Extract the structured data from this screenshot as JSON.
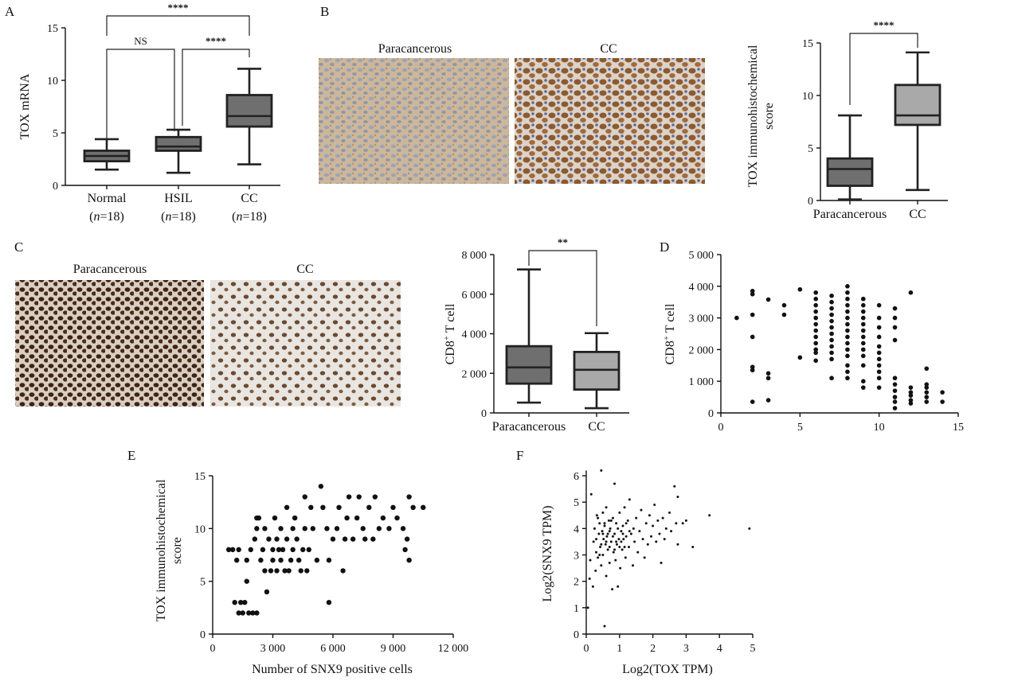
{
  "panel_letters": {
    "a": "A",
    "b": "B",
    "c": "C",
    "d": "D",
    "e": "E",
    "f": "F"
  },
  "micrograph_labels": {
    "b_left": "Paracancerous",
    "b_right": "CC",
    "c_left": "Paracancerous",
    "c_right": "CC"
  },
  "colors": {
    "dark_box": "#6f6f6f",
    "light_box": "#a9a9a9",
    "ink": "#111111"
  },
  "chart_data": [
    {
      "id": "A",
      "type": "box",
      "ylabel": "TOX mRNA",
      "ylim": [
        0,
        15
      ],
      "yticks": [
        "0",
        "5",
        "10",
        "15"
      ],
      "categories": [
        {
          "line1": "Normal",
          "n_label": "n",
          "n_value": "=18"
        },
        {
          "line1": "HSIL",
          "n_label": "n",
          "n_value": "=18"
        },
        {
          "line1": "CC",
          "n_label": "n",
          "n_value": "=18"
        }
      ],
      "boxes": [
        {
          "min": 1.5,
          "q1": 2.3,
          "median": 2.8,
          "q3": 3.3,
          "max": 4.4,
          "fill": "#6f6f6f"
        },
        {
          "min": 1.2,
          "q1": 3.3,
          "median": 3.7,
          "q3": 4.6,
          "max": 5.3,
          "fill": "#6f6f6f"
        },
        {
          "min": 2.0,
          "q1": 5.6,
          "median": 6.6,
          "q3": 8.6,
          "max": 11.1,
          "fill": "#6f6f6f"
        }
      ],
      "comparisons": [
        {
          "from": 0,
          "to": 1,
          "label": "NS"
        },
        {
          "from": 1,
          "to": 2,
          "label": "****"
        },
        {
          "from": 0,
          "to": 2,
          "label": "****"
        }
      ]
    },
    {
      "id": "B",
      "type": "box",
      "ylabel_line1": "TOX immunohistochemical",
      "ylabel_line2": "score",
      "ylim": [
        0,
        15
      ],
      "yticks": [
        "0",
        "5",
        "10",
        "15"
      ],
      "categories": [
        "Paracancerous",
        "CC"
      ],
      "boxes": [
        {
          "min": 0.1,
          "q1": 1.4,
          "median": 3.0,
          "q3": 4.0,
          "max": 8.1,
          "fill": "#6f6f6f"
        },
        {
          "min": 1.0,
          "q1": 7.2,
          "median": 8.1,
          "q3": 11.0,
          "max": 14.1,
          "fill": "#a9a9a9"
        }
      ],
      "comparisons": [
        {
          "from": 0,
          "to": 1,
          "label": "****"
        }
      ]
    },
    {
      "id": "C",
      "type": "box",
      "ylabel_main": "CD8",
      "ylabel_sup": "+",
      "ylabel_rest": " T cell",
      "ylim": [
        0,
        8000
      ],
      "yticks": [
        "0",
        "2 000",
        "4 000",
        "6 000",
        "8 000"
      ],
      "categories": [
        "Paracancerous",
        "CC"
      ],
      "boxes": [
        {
          "min": 520,
          "q1": 1480,
          "median": 2300,
          "q3": 3370,
          "max": 7250,
          "fill": "#6f6f6f"
        },
        {
          "min": 240,
          "q1": 1180,
          "median": 2180,
          "q3": 3080,
          "max": 4030,
          "fill": "#a9a9a9"
        }
      ],
      "comparisons": [
        {
          "from": 0,
          "to": 1,
          "label": "**"
        }
      ]
    },
    {
      "id": "D",
      "type": "scatter",
      "ylabel_main": "CD8",
      "ylabel_sup": "+",
      "ylabel_rest": " T cell",
      "xlim": [
        0,
        15
      ],
      "ylim": [
        0,
        5000
      ],
      "xticks": [
        "0",
        "5",
        "10",
        "15"
      ],
      "yticks": [
        "0",
        "1 000",
        "2 000",
        "3 000",
        "4 000",
        "5 000"
      ],
      "points": [
        [
          1,
          3000
        ],
        [
          2,
          3850
        ],
        [
          2,
          3750
        ],
        [
          2,
          3100
        ],
        [
          2,
          2400
        ],
        [
          2,
          1450
        ],
        [
          2,
          1350
        ],
        [
          2,
          350
        ],
        [
          3,
          3580
        ],
        [
          3,
          1250
        ],
        [
          3,
          1100
        ],
        [
          3,
          400
        ],
        [
          4,
          3400
        ],
        [
          4,
          3100
        ],
        [
          5,
          3900
        ],
        [
          5,
          1750
        ],
        [
          6,
          3800
        ],
        [
          6,
          3600
        ],
        [
          6,
          3400
        ],
        [
          6,
          3200
        ],
        [
          6,
          3000
        ],
        [
          6,
          2800
        ],
        [
          6,
          2600
        ],
        [
          6,
          2400
        ],
        [
          6,
          2200
        ],
        [
          6,
          2000
        ],
        [
          6,
          1900
        ],
        [
          6,
          1650
        ],
        [
          7,
          3700
        ],
        [
          7,
          3500
        ],
        [
          7,
          3300
        ],
        [
          7,
          3100
        ],
        [
          7,
          2900
        ],
        [
          7,
          2700
        ],
        [
          7,
          2500
        ],
        [
          7,
          2300
        ],
        [
          7,
          2100
        ],
        [
          7,
          1900
        ],
        [
          7,
          1700
        ],
        [
          7,
          1100
        ],
        [
          8,
          4000
        ],
        [
          8,
          3800
        ],
        [
          8,
          3600
        ],
        [
          8,
          3400
        ],
        [
          8,
          3200
        ],
        [
          8,
          3000
        ],
        [
          8,
          2800
        ],
        [
          8,
          2600
        ],
        [
          8,
          2400
        ],
        [
          8,
          2200
        ],
        [
          8,
          2000
        ],
        [
          8,
          1800
        ],
        [
          8,
          1500
        ],
        [
          8,
          1300
        ],
        [
          8,
          1100
        ],
        [
          9,
          3600
        ],
        [
          9,
          3400
        ],
        [
          9,
          3200
        ],
        [
          9,
          3000
        ],
        [
          9,
          2800
        ],
        [
          9,
          2600
        ],
        [
          9,
          2400
        ],
        [
          9,
          2200
        ],
        [
          9,
          2000
        ],
        [
          9,
          1800
        ],
        [
          9,
          1500
        ],
        [
          9,
          1000
        ],
        [
          9,
          800
        ],
        [
          10,
          3400
        ],
        [
          10,
          3000
        ],
        [
          10,
          2700
        ],
        [
          10,
          2400
        ],
        [
          10,
          2100
        ],
        [
          10,
          1900
        ],
        [
          10,
          1700
        ],
        [
          10,
          1500
        ],
        [
          10,
          1300
        ],
        [
          10,
          1100
        ],
        [
          10,
          800
        ],
        [
          11,
          3300
        ],
        [
          11,
          3000
        ],
        [
          11,
          2700
        ],
        [
          11,
          2300
        ],
        [
          11,
          1100
        ],
        [
          11,
          900
        ],
        [
          11,
          700
        ],
        [
          11,
          500
        ],
        [
          11,
          350
        ],
        [
          11,
          150
        ],
        [
          12,
          3800
        ],
        [
          12,
          800
        ],
        [
          12,
          650
        ],
        [
          12,
          550
        ],
        [
          12,
          400
        ],
        [
          12,
          300
        ],
        [
          13,
          1400
        ],
        [
          13,
          900
        ],
        [
          13,
          800
        ],
        [
          13,
          650
        ],
        [
          13,
          500
        ],
        [
          13,
          350
        ],
        [
          14,
          650
        ],
        [
          14,
          350
        ]
      ]
    },
    {
      "id": "E",
      "type": "scatter",
      "xlabel": "Number of SNX9 positive cells",
      "ylabel_line1": "TOX immunohistochemical",
      "ylabel_line2": "score",
      "xlim": [
        0,
        12000
      ],
      "ylim": [
        0,
        15
      ],
      "xticks": [
        "0",
        "3 000",
        "6 000",
        "9 000",
        "12 000"
      ],
      "yticks": [
        "0",
        "5",
        "10",
        "15"
      ],
      "points": [
        [
          800,
          8
        ],
        [
          1000,
          8
        ],
        [
          1100,
          3
        ],
        [
          1300,
          2
        ],
        [
          1400,
          3
        ],
        [
          1500,
          2
        ],
        [
          1600,
          3
        ],
        [
          1700,
          5
        ],
        [
          1800,
          2
        ],
        [
          2000,
          2
        ],
        [
          2200,
          2
        ],
        [
          1200,
          7
        ],
        [
          1300,
          8
        ],
        [
          1700,
          7
        ],
        [
          1900,
          8
        ],
        [
          2100,
          9
        ],
        [
          2200,
          10
        ],
        [
          2200,
          11
        ],
        [
          2300,
          11
        ],
        [
          2400,
          7
        ],
        [
          2500,
          8
        ],
        [
          2600,
          10
        ],
        [
          2600,
          6
        ],
        [
          2700,
          4
        ],
        [
          2800,
          9
        ],
        [
          2900,
          6
        ],
        [
          3000,
          7
        ],
        [
          3000,
          8
        ],
        [
          3100,
          11
        ],
        [
          3200,
          9
        ],
        [
          3200,
          6
        ],
        [
          3300,
          8
        ],
        [
          3400,
          10
        ],
        [
          3400,
          7
        ],
        [
          3500,
          8
        ],
        [
          3600,
          6
        ],
        [
          3700,
          9
        ],
        [
          3700,
          12
        ],
        [
          3800,
          6
        ],
        [
          3900,
          7
        ],
        [
          4000,
          8
        ],
        [
          4000,
          10
        ],
        [
          4100,
          11
        ],
        [
          4200,
          9
        ],
        [
          4300,
          7
        ],
        [
          4400,
          6
        ],
        [
          4500,
          8
        ],
        [
          4600,
          13
        ],
        [
          4600,
          10
        ],
        [
          4700,
          6
        ],
        [
          4800,
          8
        ],
        [
          4900,
          12
        ],
        [
          5000,
          10
        ],
        [
          5200,
          7
        ],
        [
          5400,
          14
        ],
        [
          5500,
          12
        ],
        [
          5700,
          10
        ],
        [
          5800,
          3
        ],
        [
          5800,
          7
        ],
        [
          6000,
          9
        ],
        [
          6200,
          10
        ],
        [
          6300,
          12
        ],
        [
          6500,
          6
        ],
        [
          6600,
          9
        ],
        [
          6700,
          11
        ],
        [
          6800,
          13
        ],
        [
          7000,
          9
        ],
        [
          7200,
          11
        ],
        [
          7300,
          13
        ],
        [
          7500,
          10
        ],
        [
          7600,
          9
        ],
        [
          7800,
          12
        ],
        [
          8000,
          9
        ],
        [
          8100,
          13
        ],
        [
          8300,
          10
        ],
        [
          8500,
          11
        ],
        [
          8800,
          10
        ],
        [
          9000,
          12
        ],
        [
          9200,
          11
        ],
        [
          9500,
          10
        ],
        [
          9600,
          8
        ],
        [
          9700,
          9
        ],
        [
          9800,
          7
        ],
        [
          9800,
          13
        ],
        [
          10000,
          12
        ],
        [
          10500,
          12
        ]
      ]
    },
    {
      "id": "F",
      "type": "scatter",
      "xlabel": "Log2(TOX TPM)",
      "ylabel": "Log2(SNX9 TPM)",
      "xlim": [
        0,
        5
      ],
      "ylim": [
        0,
        6.2
      ],
      "xticks": [
        "0",
        "1",
        "2",
        "3",
        "4",
        "5"
      ],
      "yticks": [
        "0",
        "1",
        "2",
        "3",
        "4",
        "5",
        "6"
      ],
      "points": [
        [
          0.05,
          1.0
        ],
        [
          0.1,
          2.1
        ],
        [
          0.12,
          2.8
        ],
        [
          0.15,
          5.3
        ],
        [
          0.2,
          1.8
        ],
        [
          0.22,
          3.5
        ],
        [
          0.25,
          4.0
        ],
        [
          0.28,
          2.4
        ],
        [
          0.3,
          3.1
        ],
        [
          0.32,
          4.5
        ],
        [
          0.35,
          2.9
        ],
        [
          0.38,
          3.8
        ],
        [
          0.4,
          4.2
        ],
        [
          0.42,
          3.3
        ],
        [
          0.45,
          2.6
        ],
        [
          0.45,
          6.2
        ],
        [
          0.48,
          3.9
        ],
        [
          0.5,
          4.6
        ],
        [
          0.5,
          3.0
        ],
        [
          0.52,
          3.6
        ],
        [
          0.55,
          0.3
        ],
        [
          0.55,
          4.1
        ],
        [
          0.58,
          3.4
        ],
        [
          0.6,
          2.2
        ],
        [
          0.6,
          4.8
        ],
        [
          0.62,
          3.7
        ],
        [
          0.65,
          3.2
        ],
        [
          0.68,
          4.3
        ],
        [
          0.7,
          2.7
        ],
        [
          0.7,
          3.9
        ],
        [
          0.72,
          4.0
        ],
        [
          0.75,
          3.5
        ],
        [
          0.78,
          1.7
        ],
        [
          0.8,
          4.4
        ],
        [
          0.82,
          3.1
        ],
        [
          0.85,
          5.7
        ],
        [
          0.85,
          3.8
        ],
        [
          0.88,
          2.8
        ],
        [
          0.9,
          4.2
        ],
        [
          0.92,
          3.4
        ],
        [
          0.95,
          1.8
        ],
        [
          0.98,
          3.6
        ],
        [
          1.0,
          4.6
        ],
        [
          1.02,
          2.5
        ],
        [
          1.05,
          3.9
        ],
        [
          1.08,
          3.2
        ],
        [
          1.1,
          4.1
        ],
        [
          1.12,
          3.6
        ],
        [
          1.15,
          4.8
        ],
        [
          1.18,
          2.9
        ],
        [
          1.2,
          3.7
        ],
        [
          1.25,
          4.3
        ],
        [
          1.28,
          3.3
        ],
        [
          1.3,
          5.1
        ],
        [
          1.35,
          3.8
        ],
        [
          1.4,
          2.6
        ],
        [
          1.42,
          4.0
        ],
        [
          1.45,
          3.5
        ],
        [
          1.5,
          4.4
        ],
        [
          1.55,
          3.1
        ],
        [
          1.6,
          3.9
        ],
        [
          1.65,
          4.7
        ],
        [
          1.7,
          3.6
        ],
        [
          1.75,
          2.9
        ],
        [
          1.8,
          4.2
        ],
        [
          1.85,
          3.4
        ],
        [
          1.9,
          4.5
        ],
        [
          1.95,
          3.7
        ],
        [
          2.0,
          4.1
        ],
        [
          2.05,
          4.9
        ],
        [
          2.1,
          3.5
        ],
        [
          2.15,
          4.3
        ],
        [
          2.2,
          3.8
        ],
        [
          2.25,
          2.7
        ],
        [
          2.3,
          4.4
        ],
        [
          2.35,
          3.6
        ],
        [
          2.4,
          4.0
        ],
        [
          2.5,
          4.6
        ],
        [
          2.55,
          3.9
        ],
        [
          2.65,
          5.6
        ],
        [
          2.7,
          4.2
        ],
        [
          2.75,
          5.2
        ],
        [
          2.75,
          3.4
        ],
        [
          2.9,
          4.2
        ],
        [
          3.0,
          4.3
        ],
        [
          3.2,
          3.3
        ],
        [
          3.7,
          4.5
        ],
        [
          4.9,
          4.0
        ],
        [
          0.3,
          3.6
        ],
        [
          0.4,
          3.0
        ],
        [
          0.5,
          3.8
        ],
        [
          0.6,
          3.5
        ],
        [
          0.7,
          3.3
        ],
        [
          0.8,
          3.7
        ],
        [
          0.9,
          3.5
        ],
        [
          1.0,
          3.3
        ],
        [
          1.1,
          3.8
        ],
        [
          1.2,
          4.2
        ],
        [
          0.35,
          4.4
        ],
        [
          0.55,
          4.2
        ],
        [
          0.65,
          3.8
        ],
        [
          0.75,
          4.3
        ],
        [
          0.95,
          4.0
        ],
        [
          1.05,
          3.5
        ],
        [
          1.15,
          3.3
        ],
        [
          1.3,
          3.9
        ],
        [
          0.45,
          3.4
        ],
        [
          0.85,
          3.2
        ]
      ]
    }
  ]
}
